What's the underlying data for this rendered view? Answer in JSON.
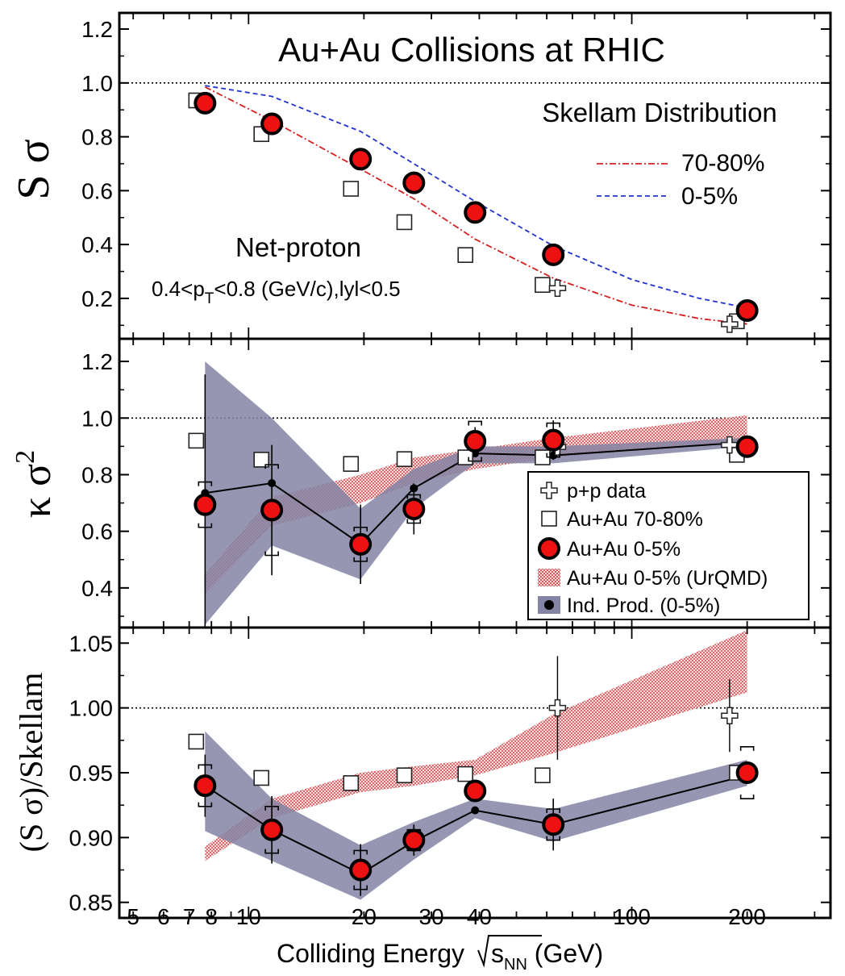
{
  "chart_data": [
    {
      "type": "scatter",
      "panel": "S-sigma",
      "title": "Au+Au Collisions at RHIC",
      "ylabel_main": "S",
      "ylabel_sym": "σ",
      "xscale": "log",
      "xlim": [
        4.6,
        330
      ],
      "ylim": [
        0.05,
        1.26
      ],
      "yticks": [
        "0.2",
        "0.4",
        "0.6",
        "0.8",
        "1.0",
        "1.2"
      ],
      "reference_line": 1.0,
      "annotations": {
        "skellam_title": "Skellam Distribution",
        "line_70_80": "70-80%",
        "line_0_5": "0-5%",
        "particle": "Net-proton",
        "cut_pre": "0.4<p",
        "cut_sub": "T",
        "cut_post": "<0.8 (GeV/c),lyl<0.5"
      },
      "series": [
        {
          "name": "Au+Au 0-5%",
          "marker": "red-circle",
          "x": [
            7.7,
            11.5,
            19.6,
            27,
            39,
            62.4,
            200
          ],
          "y": [
            0.925,
            0.848,
            0.717,
            0.629,
            0.519,
            0.362,
            0.155
          ]
        },
        {
          "name": "Au+Au 70-80%",
          "marker": "open-square",
          "x": [
            7.3,
            10.8,
            18.5,
            25.5,
            36.8,
            58.5,
            188
          ],
          "y": [
            0.935,
            0.81,
            0.607,
            0.483,
            0.361,
            0.25,
            0.115
          ]
        },
        {
          "name": "p+p data",
          "marker": "open-cross",
          "x": [
            64,
            180
          ],
          "y": [
            0.238,
            0.104
          ]
        }
      ],
      "skellam_curves": [
        {
          "name": "70-80%",
          "color": "#d42020",
          "style": "dash-dot",
          "x": [
            7.7,
            11.5,
            19.6,
            27,
            39,
            62.4,
            100,
            150,
            200
          ],
          "y": [
            0.985,
            0.86,
            0.68,
            0.57,
            0.42,
            0.275,
            0.175,
            0.125,
            0.105
          ]
        },
        {
          "name": "0-5%",
          "color": "#2233cc",
          "style": "dashed",
          "x": [
            7.7,
            11.5,
            19.6,
            27,
            39,
            62.4,
            100,
            150,
            200
          ],
          "y": [
            0.99,
            0.95,
            0.82,
            0.7,
            0.56,
            0.395,
            0.27,
            0.2,
            0.165
          ]
        }
      ]
    },
    {
      "type": "scatter",
      "panel": "kappa-sigma2",
      "ylabel_main": "κ σ",
      "ylabel_sup": "2",
      "xscale": "log",
      "xlim": [
        4.6,
        330
      ],
      "ylim": [
        0.26,
        1.28
      ],
      "yticks": [
        "0.4",
        "0.6",
        "0.8",
        "1.0",
        "1.2"
      ],
      "reference_line": 1.0,
      "legend_position": "lower-right",
      "legend": [
        "p+p data",
        "Au+Au 70-80%",
        "Au+Au 0-5%",
        "Au+Au 0-5% (UrQMD)",
        "Ind. Prod. (0-5%)"
      ],
      "series": [
        {
          "name": "Au+Au 0-5%",
          "marker": "red-circle",
          "x": [
            7.7,
            11.5,
            19.6,
            27,
            39,
            62.4,
            200
          ],
          "y": [
            0.694,
            0.675,
            0.554,
            0.679,
            0.918,
            0.922,
            0.899
          ],
          "stat_err": [
            0.46,
            0.23,
            0.14,
            0.09,
            0.05,
            0.07,
            0.02
          ],
          "sys_err": [
            0.08,
            0.16,
            0.06,
            0.05,
            0.07,
            0.06,
            0.02
          ]
        },
        {
          "name": "Au+Au 70-80%",
          "marker": "open-square",
          "x": [
            7.3,
            10.8,
            18.5,
            25.5,
            36.8,
            58.5,
            188
          ],
          "y": [
            0.92,
            0.853,
            0.838,
            0.855,
            0.861,
            0.861,
            0.87
          ]
        },
        {
          "name": "p+p data",
          "marker": "open-cross",
          "x": [
            64,
            180
          ],
          "y": [
            0.898,
            0.905
          ]
        },
        {
          "name": "Ind. Prod. (0-5%)",
          "marker": "black-dot-line",
          "x": [
            7.7,
            11.5,
            19.6,
            27,
            39,
            62.4,
            200
          ],
          "y": [
            0.735,
            0.77,
            0.555,
            0.752,
            0.875,
            0.868,
            0.915
          ]
        }
      ],
      "bands": [
        {
          "name": "Au+Au 0-5% (UrQMD)",
          "color": "#d9666a",
          "pattern": "dotted",
          "x": [
            7.7,
            11.5,
            19.6,
            27,
            39,
            62.4,
            200
          ],
          "low": [
            0.38,
            0.62,
            0.7,
            0.77,
            0.82,
            0.86,
            0.92
          ],
          "high": [
            0.45,
            0.72,
            0.8,
            0.86,
            0.89,
            0.93,
            1.01
          ]
        },
        {
          "name": "Ind. Prod. (0-5%)",
          "color": "#8484a4",
          "pattern": "solid",
          "x": [
            7.7,
            11.5,
            19.6,
            27,
            39,
            62.4,
            200
          ],
          "low": [
            0.27,
            0.55,
            0.43,
            0.68,
            0.84,
            0.84,
            0.9
          ],
          "high": [
            1.2,
            1.0,
            0.68,
            0.82,
            0.9,
            0.9,
            0.93
          ]
        }
      ]
    },
    {
      "type": "scatter",
      "panel": "S-sigma-over-Skellam",
      "ylabel": "(S σ)/Skellam",
      "xlabel_pre": "Colliding Energy ",
      "xlabel_s": "s",
      "xlabel_sub": "NN",
      "xlabel_post": " (GeV)",
      "xscale": "log",
      "xlim": [
        4.6,
        330
      ],
      "ylim": [
        0.838,
        1.062
      ],
      "yticks": [
        "0.85",
        "0.90",
        "0.95",
        "1.00",
        "1.05"
      ],
      "xticks": [
        "5",
        "6",
        "7",
        "8",
        "10",
        "20",
        "30",
        "40",
        "100",
        "200"
      ],
      "xtick_values": [
        5,
        6,
        7,
        8,
        10,
        20,
        30,
        40,
        100,
        200
      ],
      "reference_line": 1.0,
      "series": [
        {
          "name": "Au+Au 0-5%",
          "marker": "red-circle",
          "x": [
            7.7,
            11.5,
            19.6,
            27,
            39,
            62.4,
            200
          ],
          "y": [
            0.94,
            0.906,
            0.875,
            0.898,
            0.936,
            0.91,
            0.95
          ],
          "stat_err": [
            0.024,
            0.026,
            0.02,
            0.012,
            0.008,
            0.02,
            0.008
          ],
          "sys_err": [
            0.016,
            0.018,
            0.015,
            0.008,
            0.005,
            0.012,
            0.02
          ]
        },
        {
          "name": "Au+Au 70-80%",
          "marker": "open-square",
          "x": [
            7.3,
            10.8,
            18.5,
            25.5,
            36.8,
            58.5,
            188
          ],
          "y": [
            0.974,
            0.946,
            0.942,
            0.948,
            0.949,
            0.948,
            0.95
          ]
        },
        {
          "name": "p+p data",
          "marker": "open-cross",
          "x": [
            64,
            180
          ],
          "y": [
            1.0,
            0.994
          ],
          "stat_err": [
            0.04,
            0.028
          ]
        },
        {
          "name": "Ind. Prod. (0-5%)",
          "marker": "black-dot-line",
          "x": [
            7.7,
            11.5,
            19.6,
            27,
            39,
            62.4,
            200
          ],
          "y": [
            0.94,
            0.906,
            0.872,
            0.897,
            0.921,
            0.91,
            0.948
          ]
        }
      ],
      "bands": [
        {
          "name": "Au+Au 0-5% (UrQMD)",
          "color": "#d9666a",
          "pattern": "dotted",
          "x": [
            7.7,
            11.5,
            19.6,
            27,
            39,
            62.4,
            200
          ],
          "low": [
            0.882,
            0.915,
            0.935,
            0.94,
            0.948,
            0.965,
            1.012
          ],
          "high": [
            0.893,
            0.93,
            0.95,
            0.955,
            0.96,
            0.995,
            1.06
          ]
        },
        {
          "name": "Ind. Prod. (0-5%)",
          "color": "#8484a4",
          "pattern": "solid",
          "x": [
            7.7,
            11.5,
            19.6,
            27,
            39,
            62.4,
            200
          ],
          "low": [
            0.905,
            0.882,
            0.852,
            0.883,
            0.915,
            0.897,
            0.94
          ],
          "high": [
            0.982,
            0.93,
            0.894,
            0.912,
            0.93,
            0.922,
            0.96
          ]
        }
      ]
    }
  ]
}
